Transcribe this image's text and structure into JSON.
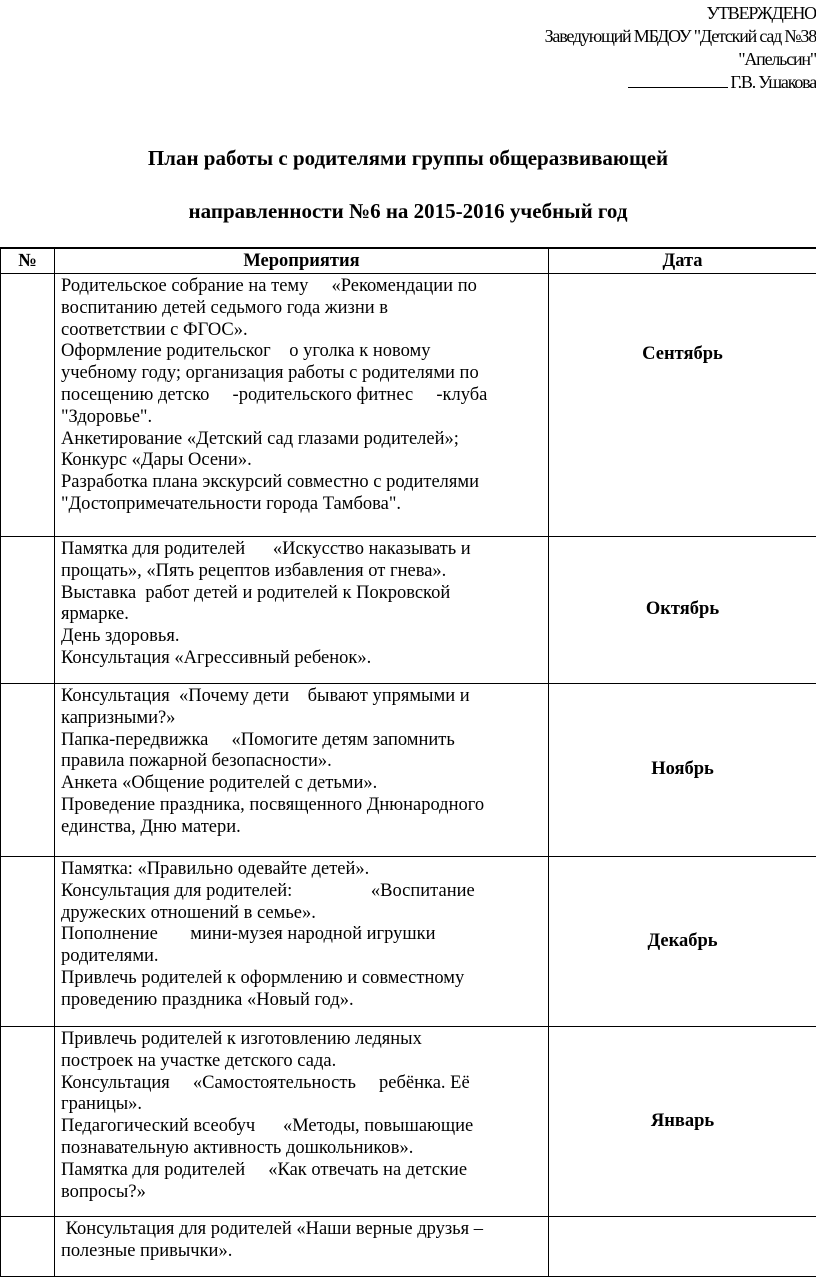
{
  "approval": {
    "heading": "УТВЕРЖДЕНО",
    "position": "Заведующий  МБДОУ \"Детский сад №38",
    "org": "\"Апельсин\"",
    "signer": "Г.В. Ушакова"
  },
  "title": {
    "line1": "План работы с родителями группы общеразвивающей",
    "line2": "направленности №6 на 2015-2016 учебный год"
  },
  "table": {
    "headers": [
      "№",
      "Мероприятия",
      "Дата"
    ],
    "rows": [
      {
        "date": "Сентябрь",
        "lines": [
          "Родительское собрание на тему     «Рекомендации по",
          "воспитанию детей седьмого года жизни в",
          "соответствии с ФГОС».",
          "Оформление родительског    о уголка к новому",
          "учебному году; организация работы с родителями по",
          "посещению детско     -родительского фитнес     -клуба",
          "\"Здоровье\".",
          "Анкетирование «Детский сад глазами родителей»;",
          "Конкурс «Дары Осени».",
          "Разработка плана экскурсий совместно с родителями",
          "\"Достопримечательности города Тамбова\"."
        ]
      },
      {
        "date": "Октябрь",
        "lines": [
          "Памятка для родителей      «Искусство наказывать и",
          "прощать», «Пять рецептов избавления от гнева».",
          "Выставка  работ детей и родителей к Покровской",
          "ярмарке.",
          "День здоровья.",
          "Консультация «Агрессивный ребенок»."
        ]
      },
      {
        "date": "Ноябрь",
        "lines": [
          "Консультация  «Почему дети    бывают упрямыми и",
          "капризными?»",
          "Папка-передвижка     «Помогите детям запомнить",
          "правила пожарной безопасности».",
          "Анкета «Общение родителей с детьми».",
          "Проведение праздника, посвященного Днюнародного",
          "единства, Дню матери."
        ]
      },
      {
        "date": "Декабрь",
        "lines": [
          "Памятка: «Правильно одевайте детей».",
          "Консультация для родителей:                 «Воспитание",
          "дружеских отношений в семье».",
          "Пополнение       мини-музея народной игрушки",
          "родителями.",
          "Привлечь родителей к оформлению и совместному",
          "проведению праздника «Новый год»."
        ]
      },
      {
        "date": "Январь",
        "lines": [
          "Привлечь родителей к изготовлению ледяных",
          "построек на участке детского сада.",
          "Консультация     «Самостоятельность     ребёнка. Её",
          "границы».",
          "Педагогический всеобуч      «Методы, повышающие",
          "познавательную активность дошкольников».",
          "Памятка для родителей     «Как отвечать на детские",
          "вопросы?»"
        ]
      },
      {
        "date": "",
        "lines": [
          " Консультация для родителей «Наши верные друзья –",
          "полезные привычки»."
        ]
      }
    ]
  }
}
